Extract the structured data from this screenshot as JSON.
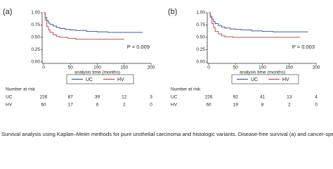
{
  "chart_data": [
    {
      "type": "line",
      "panel_label": "(a)",
      "xlabel": "analysis time (months)",
      "annotation": "P = 0.009",
      "xlim": [
        0,
        200
      ],
      "xticks": [
        0,
        50,
        100,
        150,
        200
      ],
      "ylim": [
        0,
        1
      ],
      "yticks": [
        {
          "value": 0,
          "label": "0.00"
        },
        {
          "value": 0.25,
          "label": "0.25"
        },
        {
          "value": 0.5,
          "label": "0.50"
        },
        {
          "value": 0.75,
          "label": "0.75"
        },
        {
          "value": 1,
          "label": "1.00"
        }
      ],
      "series": [
        {
          "name": "UC",
          "color": "#3b5ba5",
          "x": [
            0,
            3,
            6,
            9,
            12,
            18,
            24,
            30,
            40,
            50,
            60,
            80,
            100,
            120,
            150,
            185
          ],
          "values": [
            1,
            0.9,
            0.84,
            0.79,
            0.76,
            0.73,
            0.7,
            0.68,
            0.66,
            0.65,
            0.64,
            0.62,
            0.61,
            0.6,
            0.6,
            0.6
          ]
        },
        {
          "name": "HV",
          "color": "#c0504d",
          "x": [
            0,
            3,
            6,
            9,
            12,
            18,
            24,
            30,
            45,
            60,
            150
          ],
          "values": [
            1,
            0.85,
            0.72,
            0.65,
            0.6,
            0.55,
            0.52,
            0.5,
            0.48,
            0.46,
            0.46
          ]
        }
      ],
      "risk_table": {
        "title": "Number at risk",
        "rows": [
          {
            "name": "UC",
            "values": [
              226,
              87,
              39,
              12,
              3
            ]
          },
          {
            "name": "HV",
            "values": [
              60,
              17,
              6,
              2,
              0
            ]
          }
        ]
      }
    },
    {
      "type": "line",
      "panel_label": "(b)",
      "xlabel": "analysis time (months)",
      "annotation": "P = 0.003",
      "xlim": [
        0,
        200
      ],
      "xticks": [
        0,
        50,
        100,
        150,
        200
      ],
      "ylim": [
        0,
        1
      ],
      "yticks": [
        {
          "value": 0,
          "label": "0.00"
        },
        {
          "value": 0.25,
          "label": "0.25"
        },
        {
          "value": 0.5,
          "label": "0.50"
        },
        {
          "value": 0.75,
          "label": "0.75"
        },
        {
          "value": 1,
          "label": "1.00"
        }
      ],
      "series": [
        {
          "name": "UC",
          "color": "#3b5ba5",
          "x": [
            0,
            3,
            6,
            9,
            12,
            18,
            24,
            30,
            40,
            50,
            60,
            80,
            100,
            120,
            150,
            185
          ],
          "values": [
            1,
            0.93,
            0.87,
            0.82,
            0.78,
            0.74,
            0.71,
            0.69,
            0.67,
            0.66,
            0.65,
            0.63,
            0.62,
            0.61,
            0.61,
            0.61
          ]
        },
        {
          "name": "HV",
          "color": "#c0504d",
          "x": [
            0,
            3,
            6,
            9,
            12,
            18,
            24,
            30,
            45,
            60,
            170
          ],
          "values": [
            1,
            0.9,
            0.78,
            0.7,
            0.62,
            0.57,
            0.53,
            0.51,
            0.5,
            0.5,
            0.5
          ]
        }
      ],
      "risk_table": {
        "title": "Number at risk",
        "rows": [
          {
            "name": "UC",
            "values": [
              226,
              92,
              41,
              13,
              4
            ]
          },
          {
            "name": "HV",
            "values": [
              60,
              19,
              8,
              2,
              0
            ]
          }
        ]
      }
    }
  ],
  "caption": "Survival analysis using Kaplan–Meier methods for pure urothelial carcinoma and histologic variants. Disease-free survival (a) and cancer-specific survival (b"
}
